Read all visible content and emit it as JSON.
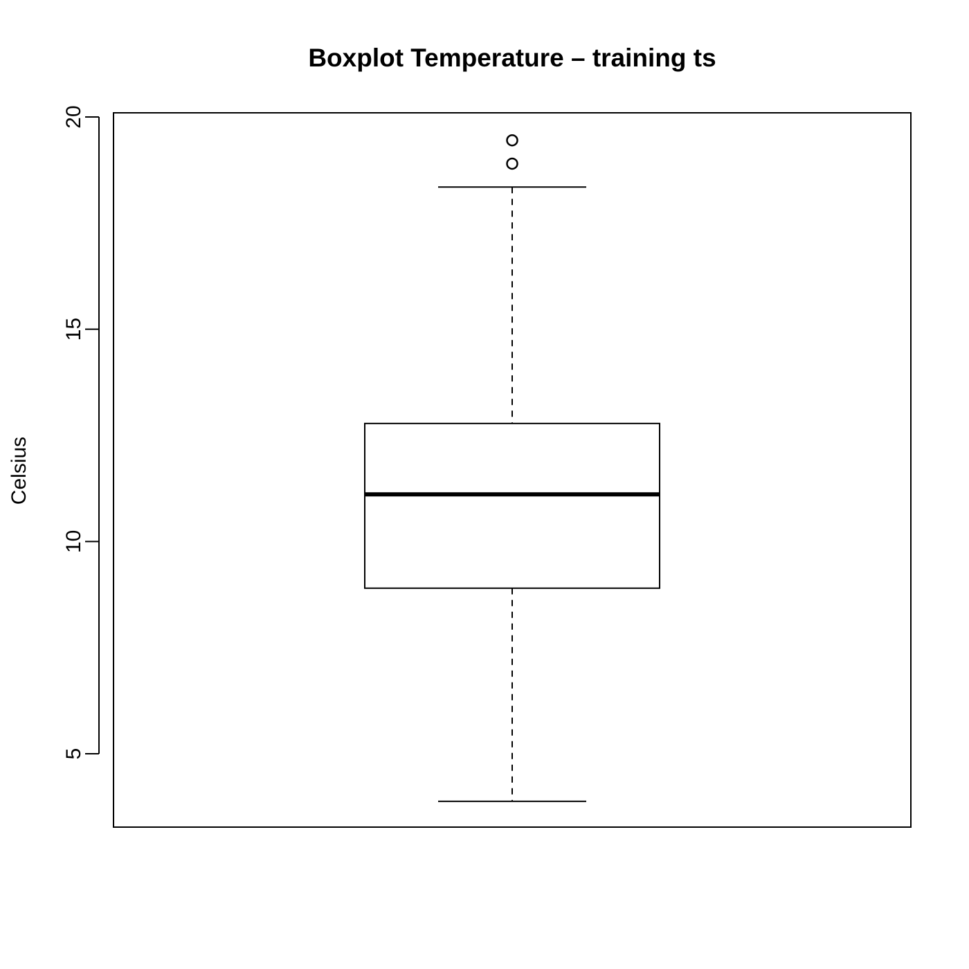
{
  "chart_data": {
    "type": "boxplot",
    "title": "Boxplot Temperature – training ts",
    "ylabel": "Celsius",
    "xlabel": "",
    "ylim": [
      3.3,
      20.1
    ],
    "yticks": [
      5,
      10,
      15,
      20
    ],
    "ytick_labels": [
      "5",
      "10",
      "15",
      "20"
    ],
    "grid": false,
    "box": {
      "whisker_low": 3.88,
      "q1": 8.9,
      "median": 11.11,
      "q3": 12.78,
      "whisker_high": 18.35
    },
    "outliers": [
      18.9,
      19.45
    ]
  }
}
